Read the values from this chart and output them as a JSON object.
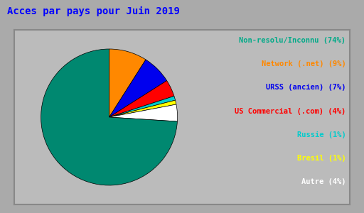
{
  "title": "Acces par pays pour Juin 2019",
  "title_color": "#0000ff",
  "background_color": "#aaaaaa",
  "box_color": "#bbbbbb",
  "border_color": "#888888",
  "segments": [
    {
      "label": "Non-resolu/Inconnu (74%)",
      "value": 74,
      "color": "#008870",
      "text_color": "#00aa88"
    },
    {
      "label": "Network (.net) (9%)",
      "value": 9,
      "color": "#ff8800",
      "text_color": "#ff8800"
    },
    {
      "label": "URSS (ancien) (7%)",
      "value": 7,
      "color": "#0000ee",
      "text_color": "#0000ee"
    },
    {
      "label": "US Commercial (.com) (4%)",
      "value": 4,
      "color": "#ff0000",
      "text_color": "#ff0000"
    },
    {
      "label": "Russie (1%)",
      "value": 1,
      "color": "#00cccc",
      "text_color": "#00cccc"
    },
    {
      "label": "Bresil (1%)",
      "value": 1,
      "color": "#ffff00",
      "text_color": "#ffff00"
    },
    {
      "label": "Autre (4%)",
      "value": 4,
      "color": "#ffffff",
      "text_color": "#ffffff"
    }
  ],
  "startangle": 90,
  "figsize": [
    5.12,
    3.0
  ],
  "dpi": 100,
  "title_fontsize": 10,
  "legend_fontsize": 7.5
}
